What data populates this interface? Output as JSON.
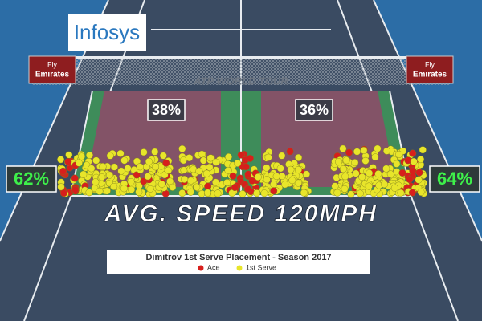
{
  "logo": "Infosys",
  "net": {
    "sponsor_left": {
      "line1": "Fly",
      "line2": "Emirates"
    },
    "sponsor_right": {
      "line1": "Fly",
      "line2": "Emirates"
    },
    "banner": "ATP WORLD TOUR"
  },
  "service_boxes": {
    "left_pct": "38%",
    "right_pct": "36%"
  },
  "wide_pct": {
    "left": "62%",
    "right": "64%"
  },
  "speed": "AVG. SPEED 120MPH",
  "legend": {
    "title": "Dimitrov 1st Serve Placement - Season 2017",
    "items": [
      {
        "label": "Ace",
        "color": "#d71f1c"
      },
      {
        "label": "1st Serve",
        "color": "#e8e52a"
      }
    ]
  }
}
